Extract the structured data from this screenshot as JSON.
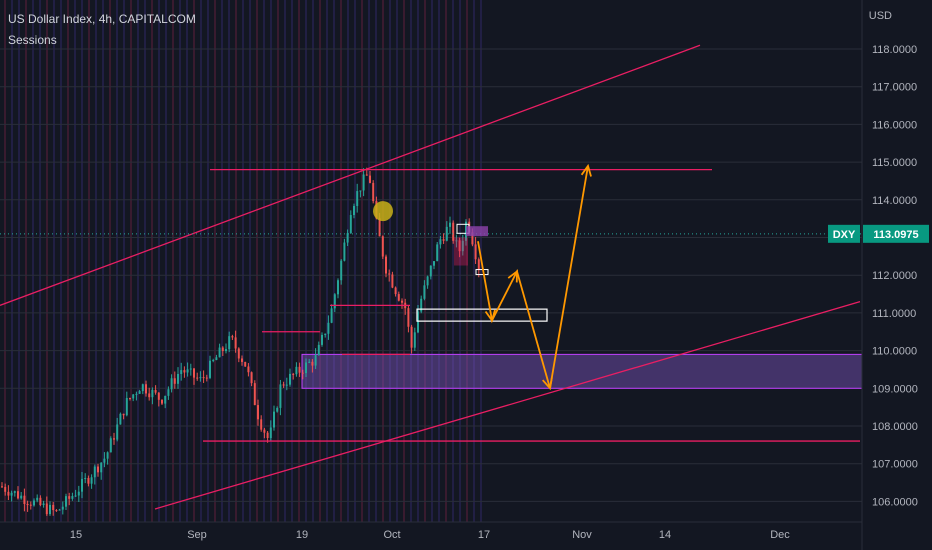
{
  "header": {
    "title": "US Dollar Index, 4h, CAPITALCOM",
    "indicator": "Sessions"
  },
  "axis": {
    "currency": "USD",
    "price_ticks": [
      "118.0000",
      "117.0000",
      "116.0000",
      "115.0000",
      "114.0000",
      "112.0000",
      "111.0000",
      "110.0000",
      "109.0000",
      "108.0000",
      "107.0000",
      "106.0000"
    ],
    "date_ticks": [
      "15",
      "Sep",
      "19",
      "Oct",
      "17",
      "Nov",
      "14",
      "Dec"
    ]
  },
  "symbol_badge": {
    "symbol": "DXY",
    "price": "113.0975"
  },
  "colors": {
    "background": "#131722",
    "channel": "#e91e63",
    "arrows": "#ff9800",
    "zone": "#7e57c2",
    "badge": "#089981",
    "candle_up": "#26a69a",
    "candle_down": "#ef5350"
  },
  "chart_data": {
    "type": "candlestick",
    "title": "US Dollar Index, 4h, CAPITALCOM",
    "ylim": [
      105.6,
      118.8
    ],
    "last_price": 113.0975,
    "price_path": [
      [
        0,
        106.4
      ],
      [
        30,
        106.0
      ],
      [
        55,
        105.7
      ],
      [
        80,
        106.4
      ],
      [
        105,
        107.2
      ],
      [
        125,
        108.6
      ],
      [
        140,
        109.1
      ],
      [
        160,
        108.7
      ],
      [
        180,
        109.5
      ],
      [
        200,
        109.2
      ],
      [
        215,
        109.8
      ],
      [
        230,
        110.3
      ],
      [
        245,
        109.6
      ],
      [
        258,
        108.2
      ],
      [
        268,
        107.6
      ],
      [
        280,
        109.1
      ],
      [
        300,
        109.5
      ],
      [
        315,
        109.8
      ],
      [
        330,
        111.0
      ],
      [
        342,
        112.6
      ],
      [
        350,
        113.8
      ],
      [
        360,
        114.4
      ],
      [
        368,
        114.7
      ],
      [
        375,
        113.4
      ],
      [
        385,
        112.2
      ],
      [
        395,
        111.6
      ],
      [
        405,
        111.1
      ],
      [
        410,
        110.0
      ],
      [
        418,
        111.2
      ],
      [
        428,
        112.0
      ],
      [
        438,
        112.9
      ],
      [
        448,
        113.3
      ],
      [
        458,
        112.6
      ],
      [
        466,
        113.5
      ],
      [
        472,
        112.9
      ],
      [
        478,
        112.2
      ]
    ],
    "overlays": {
      "channel_upper": [
        [
          0,
          111.2
        ],
        [
          700,
          118.1
        ]
      ],
      "channel_lower": [
        [
          155,
          105.8
        ],
        [
          860,
          111.3
        ]
      ],
      "resistance_top": [
        [
          210,
          114.8
        ],
        [
          712,
          114.8
        ]
      ],
      "support_low": [
        [
          203,
          107.6
        ],
        [
          860,
          107.6
        ]
      ],
      "level_110_5": [
        [
          262,
          110.5
        ],
        [
          320,
          110.5
        ]
      ],
      "level_111_2": [
        [
          330,
          111.2
        ],
        [
          410,
          111.2
        ]
      ],
      "zone": [
        109.0,
        109.9
      ],
      "projection": [
        [
          478,
          112.9
        ],
        [
          492,
          110.8
        ],
        [
          517,
          112.1
        ],
        [
          550,
          109.0
        ],
        [
          588,
          114.9
        ]
      ]
    }
  }
}
